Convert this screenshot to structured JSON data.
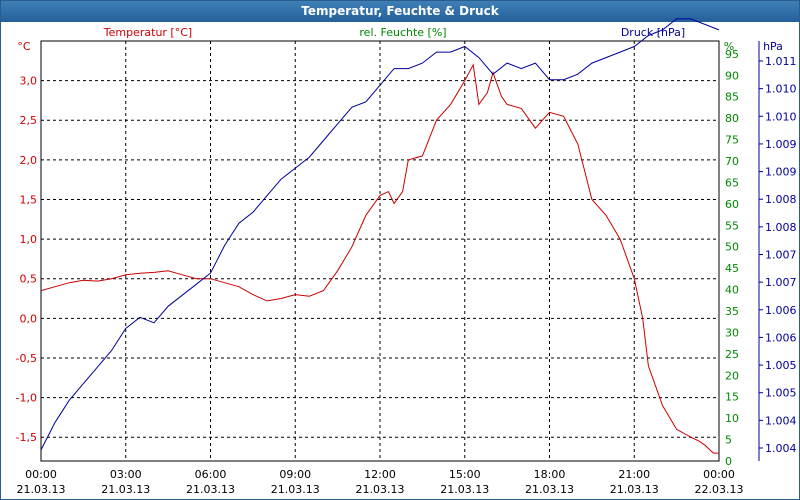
{
  "window": {
    "title": "Temperatur, Feuchte & Druck"
  },
  "chart_data": {
    "type": "line",
    "title": "Temperatur, Feuchte & Druck",
    "colors": {
      "temp": "#cc0000",
      "hum": "#008800",
      "press": "#000099",
      "grid": "#000000"
    },
    "x_tick_times": [
      "00:00",
      "03:00",
      "06:00",
      "09:00",
      "12:00",
      "15:00",
      "18:00",
      "21:00",
      "00:00"
    ],
    "x_tick_dates": [
      "21.03.13",
      "21.03.13",
      "21.03.13",
      "21.03.13",
      "21.03.13",
      "21.03.13",
      "21.03.13",
      "21.03.13",
      "22.03.13"
    ],
    "x_range_hours": [
      0,
      24
    ],
    "axes": {
      "temperature": {
        "label": "Temperatur [°C]",
        "unit": "°C",
        "range": [
          -1.8,
          3.5
        ],
        "ticks": [
          "3,0",
          "2,5",
          "2,0",
          "1,5",
          "1,0",
          "0,5",
          "0,0",
          "-0,5",
          "-1,0",
          "-1,5"
        ]
      },
      "humidity": {
        "label": "rel. Feuchte [%]",
        "unit": "%",
        "range": [
          0,
          98
        ],
        "ticks": [
          "95",
          "90",
          "85",
          "80",
          "75",
          "70",
          "65",
          "60",
          "55",
          "50",
          "45",
          "40",
          "35",
          "30",
          "25",
          "20",
          "15",
          "10",
          "5",
          "0"
        ]
      },
      "pressure": {
        "label": "Druck [hPa]",
        "unit": "hPa",
        "range": [
          1003.6,
          1011.2
        ],
        "ticks": [
          "1.011",
          "1.010",
          "1.010",
          "1.009",
          "1.009",
          "1.008",
          "1.008",
          "1.007",
          "1.007",
          "1.006",
          "1.006",
          "1.005",
          "1.005",
          "1.004",
          "1.004"
        ]
      }
    },
    "series": [
      {
        "name": "Temperatur [°C]",
        "axis": "temperature",
        "color": "#cc0000",
        "x": [
          0,
          0.5,
          1,
          1.5,
          2,
          2.5,
          3,
          3.5,
          4,
          4.5,
          5,
          5.5,
          6,
          6.5,
          7,
          7.5,
          8,
          8.5,
          9,
          9.5,
          10,
          10.5,
          11,
          11.5,
          12,
          12.3,
          12.5,
          12.8,
          13,
          13.5,
          14,
          14.5,
          15,
          15.3,
          15.5,
          15.8,
          16,
          16.3,
          16.5,
          17,
          17.5,
          18,
          18.5,
          19,
          19.5,
          20,
          20.5,
          21,
          21.3,
          21.5,
          22,
          22.5,
          23,
          23.3,
          23.5,
          23.8,
          24
        ],
        "values": [
          0.35,
          0.4,
          0.45,
          0.48,
          0.47,
          0.5,
          0.55,
          0.57,
          0.58,
          0.6,
          0.55,
          0.5,
          0.5,
          0.45,
          0.4,
          0.3,
          0.22,
          0.25,
          0.3,
          0.28,
          0.35,
          0.6,
          0.9,
          1.3,
          1.55,
          1.6,
          1.45,
          1.6,
          2.0,
          2.05,
          2.5,
          2.7,
          3.0,
          3.2,
          2.7,
          2.85,
          3.1,
          2.8,
          2.7,
          2.65,
          2.4,
          2.6,
          2.55,
          2.2,
          1.5,
          1.3,
          1.0,
          0.5,
          0.0,
          -0.6,
          -1.1,
          -1.4,
          -1.5,
          -1.55,
          -1.6,
          -1.7,
          -1.7
        ]
      },
      {
        "name": "Druck [hPa]",
        "axis": "pressure",
        "color": "#000099",
        "x": [
          0,
          0.5,
          1,
          1.5,
          2,
          2.5,
          3,
          3.5,
          4,
          4.5,
          5,
          5.5,
          6,
          6.5,
          7,
          7.5,
          8,
          8.5,
          9,
          9.5,
          10,
          10.5,
          11,
          11.5,
          12,
          12.5,
          13,
          13.5,
          14,
          14.5,
          15,
          15.5,
          16,
          16.5,
          17,
          17.5,
          18,
          18.5,
          19,
          19.5,
          20,
          20.5,
          21,
          21.5,
          22,
          22.5,
          23,
          23.5,
          24
        ],
        "values": [
          1003.8,
          1004.3,
          1004.7,
          1005.0,
          1005.3,
          1005.6,
          1006.0,
          1006.2,
          1006.1,
          1006.4,
          1006.6,
          1006.8,
          1007.0,
          1007.5,
          1007.9,
          1008.1,
          1008.4,
          1008.7,
          1008.9,
          1009.1,
          1009.4,
          1009.7,
          1010.0,
          1010.1,
          1010.4,
          1010.7,
          1010.7,
          1010.8,
          1011.0,
          1011.0,
          1011.1,
          1010.9,
          1010.6,
          1010.8,
          1010.7,
          1010.8,
          1010.5,
          1010.5,
          1010.6,
          1010.8,
          1010.9,
          1011.0,
          1011.1,
          1011.3,
          1011.4,
          1011.6,
          1011.6,
          1011.5,
          1011.4
        ]
      }
    ]
  }
}
